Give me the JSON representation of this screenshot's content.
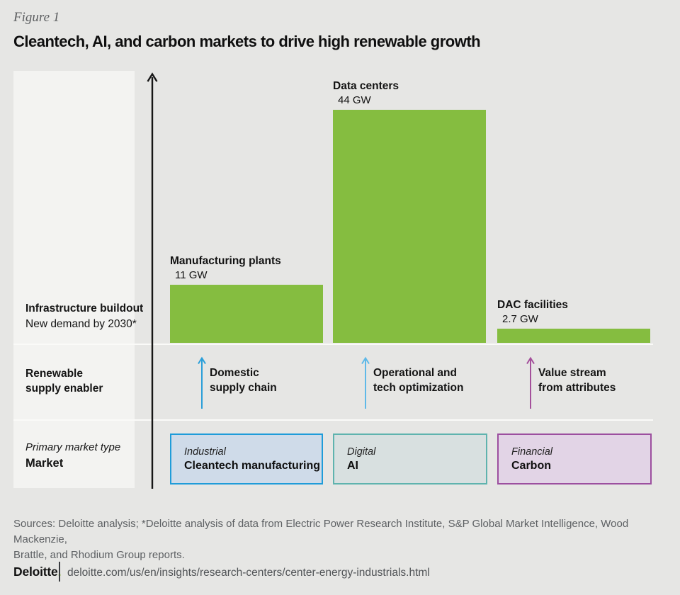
{
  "header": {
    "figure_label": "Figure 1",
    "title": "Cleantech, AI, and carbon markets to drive high renewable growth"
  },
  "rows": {
    "buildout": {
      "title": "Infrastructure buildout",
      "subtitle": "New demand by 2030*"
    },
    "enabler": {
      "title": "Renewable\nsupply enabler"
    },
    "market": {
      "subtitle": "Primary market type",
      "title": "Market"
    }
  },
  "chart_data": {
    "type": "bar",
    "unit": "GW",
    "categories": [
      "Manufacturing plants",
      "Data centers",
      "DAC facilities"
    ],
    "values": [
      11,
      44,
      2.7
    ],
    "value_labels": [
      "11 GW",
      "44 GW",
      "2.7 GW"
    ],
    "bar_color": "#85bd40",
    "ylabel": "Infrastructure buildout — New demand by 2030*",
    "ylim": [
      0,
      44
    ],
    "grid": false,
    "legend": "none",
    "enablers": [
      {
        "label": "Domestic\nsupply chain",
        "arrow_color": "#2b9fd9"
      },
      {
        "label": "Operational and\ntech optimization",
        "arrow_color": "#5fb9e8"
      },
      {
        "label": "Value stream\nfrom attributes",
        "arrow_color": "#a4509b"
      }
    ],
    "markets": [
      {
        "type": "Industrial",
        "name": "Cleantech manufacturing",
        "border": "#1f9cd9",
        "fill": "#cfdbe9"
      },
      {
        "type": "Digital",
        "name": "AI",
        "border": "#5fb3ae",
        "fill": "#d8e0e0"
      },
      {
        "type": "Financial",
        "name": "Carbon",
        "border": "#9c4f9f",
        "fill": "#e2d4e6"
      }
    ]
  },
  "footer": {
    "sources": "Sources: Deloitte analysis; *Deloitte analysis of data from Electric Power Research Institute, S&P Global Market Intelligence, Wood Mackenzie,\nBrattle, and Rhodium Group reports.",
    "logo": "Deloitte",
    "logo_dot": ".",
    "dot_color": "#86bc25",
    "url": "deloitte.com/us/en/insights/research-centers/center-energy-industrials.html"
  }
}
